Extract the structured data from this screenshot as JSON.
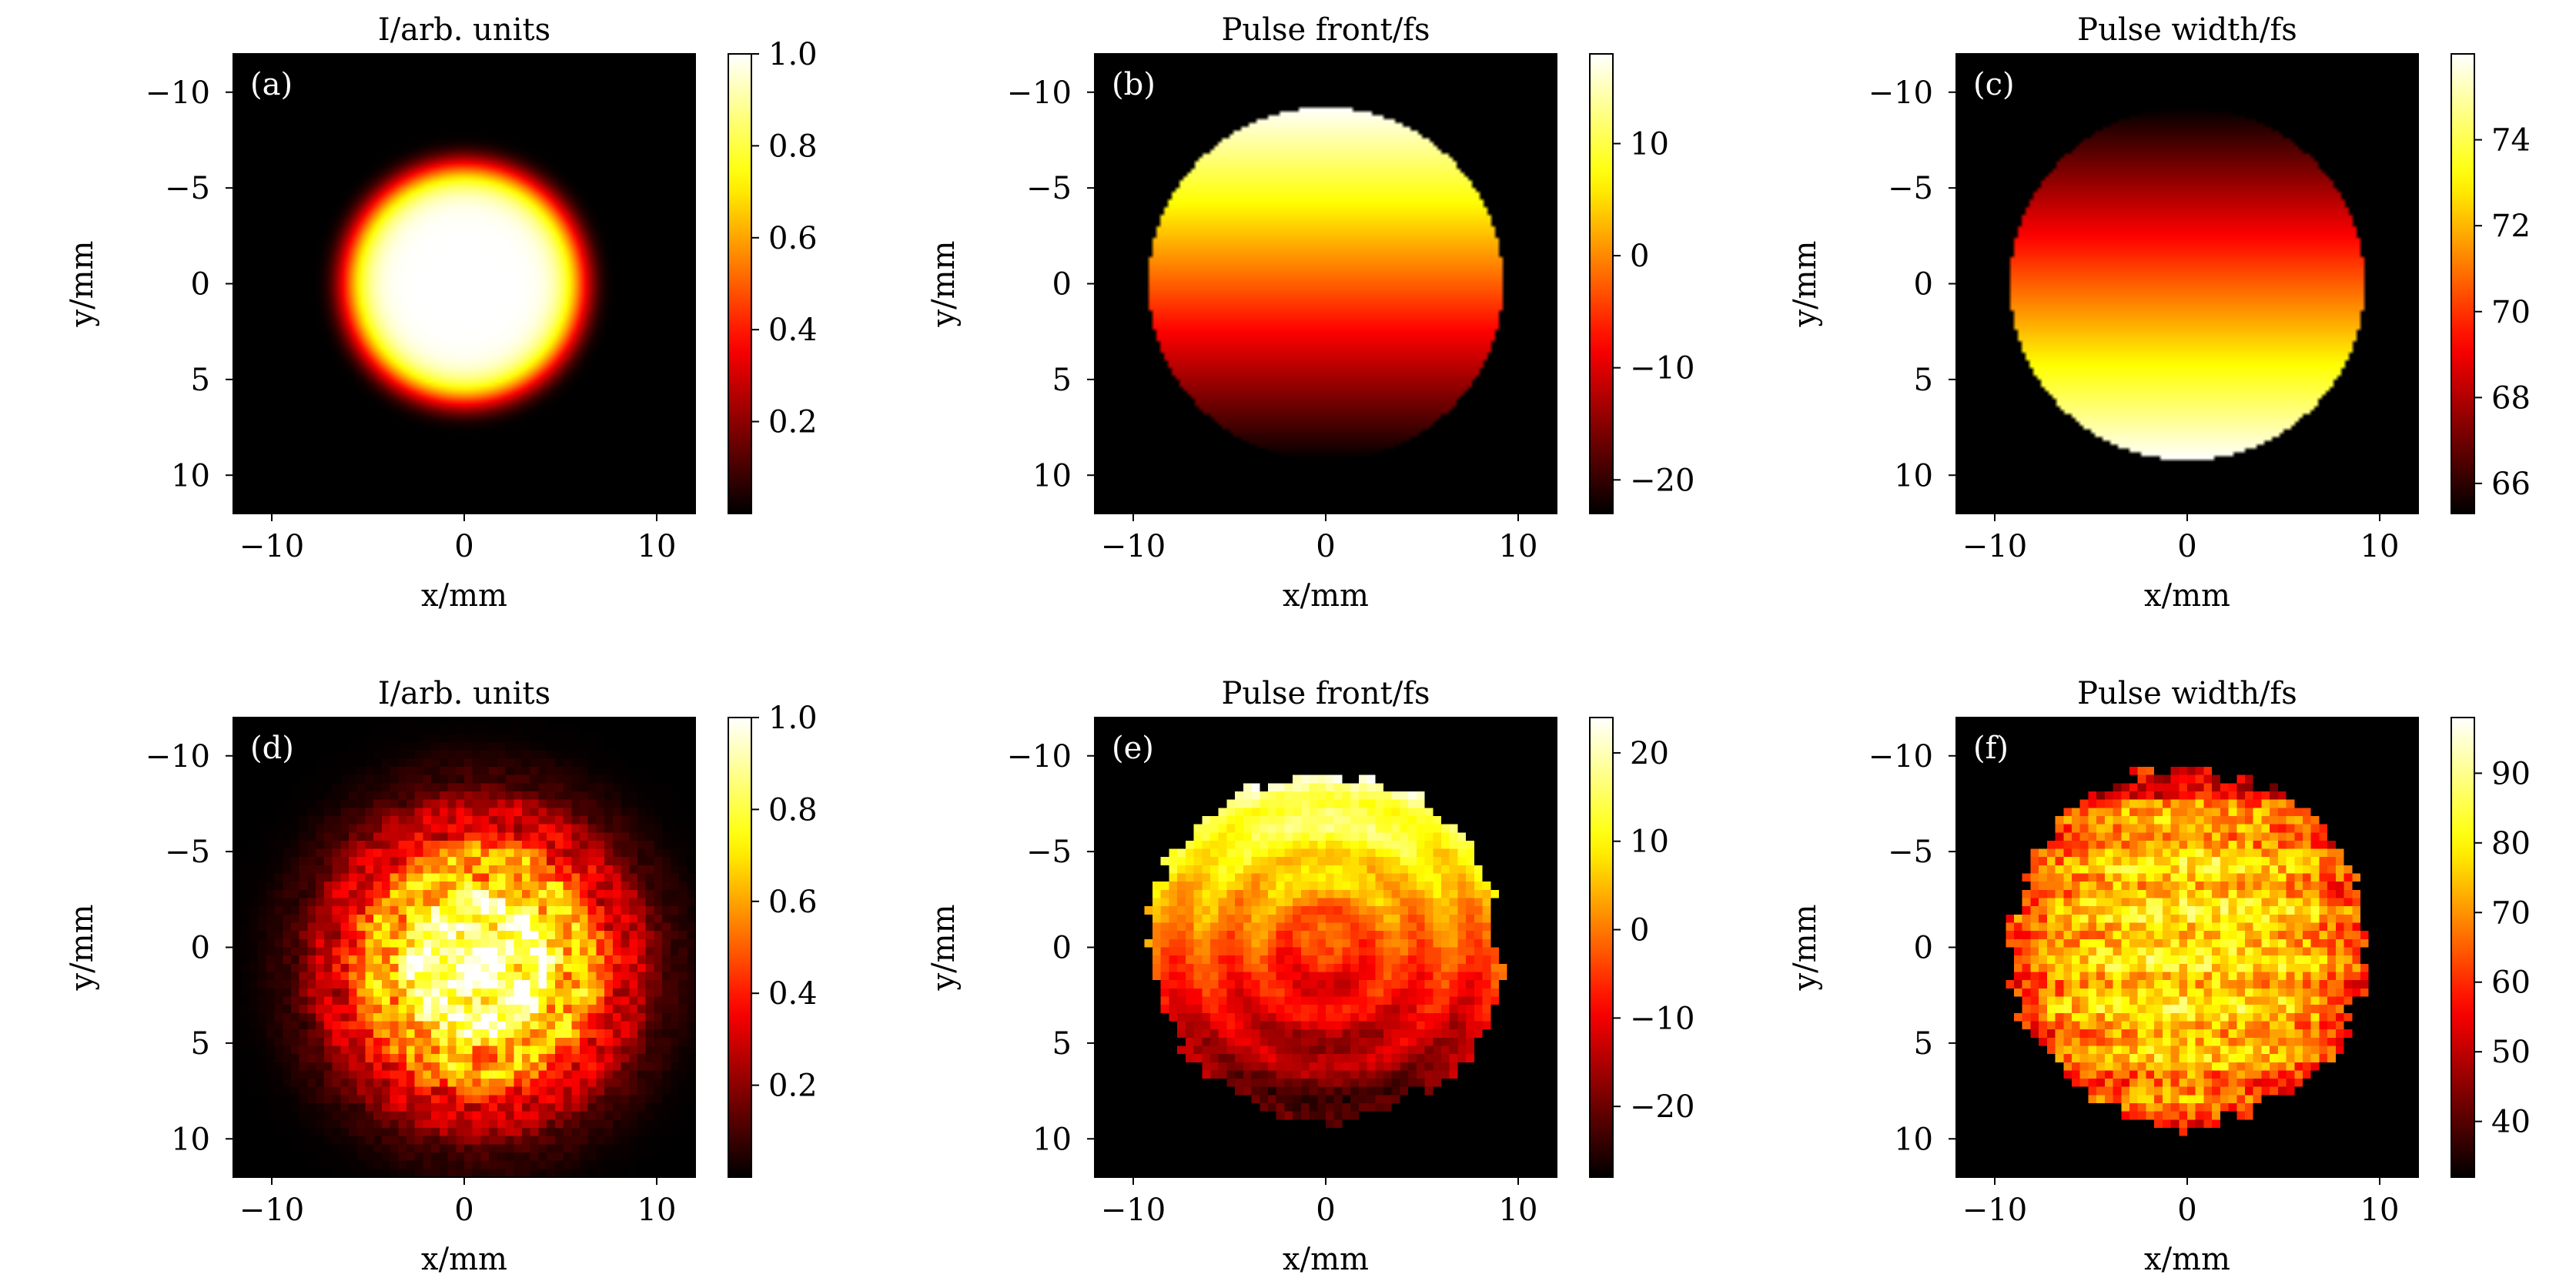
{
  "chart_data": [
    {
      "panel": "(a)",
      "type": "heatmap",
      "title": "I/arb. units",
      "xlabel": "x/mm",
      "ylabel": "y/mm",
      "xlim": [
        -12,
        12
      ],
      "ylim": [
        12,
        -12
      ],
      "xticks": [
        -10,
        0,
        10
      ],
      "xtick_labels": [
        "−10",
        "0",
        "10"
      ],
      "yticks": [
        -10,
        -5,
        0,
        5,
        10
      ],
      "ytick_labels": [
        "−10",
        "−5",
        "0",
        "5",
        "10"
      ],
      "colormap": "hot",
      "colorbar": {
        "min": 0,
        "max": 1.0,
        "ticks": [
          0.2,
          0.4,
          0.6,
          0.8,
          1.0
        ],
        "tick_labels": [
          "0.2",
          "0.4",
          "0.6",
          "0.8",
          "1.0"
        ]
      },
      "field": {
        "kind": "supergaussian",
        "radius_mm": 6.0,
        "order": 4,
        "center": [
          0,
          0
        ],
        "peak": 1.0
      }
    },
    {
      "panel": "(b)",
      "type": "heatmap",
      "title": "Pulse front/fs",
      "xlabel": "x/mm",
      "ylabel": "y/mm",
      "xlim": [
        -12,
        12
      ],
      "ylim": [
        12,
        -12
      ],
      "xticks": [
        -10,
        0,
        10
      ],
      "xtick_labels": [
        "−10",
        "0",
        "10"
      ],
      "yticks": [
        -10,
        -5,
        0,
        5,
        10
      ],
      "ytick_labels": [
        "−10",
        "−5",
        "0",
        "5",
        "10"
      ],
      "colormap": "hot",
      "colorbar": {
        "min": -23,
        "max": 18,
        "ticks": [
          -20,
          -10,
          0,
          10
        ],
        "tick_labels": [
          "−20",
          "−10",
          "0",
          "10"
        ]
      },
      "field": {
        "kind": "vertical_gradient",
        "aperture_radius_mm": 9.2,
        "value_at_top": 18,
        "value_at_bottom": -23
      }
    },
    {
      "panel": "(c)",
      "type": "heatmap",
      "title": "Pulse width/fs",
      "xlabel": "x/mm",
      "ylabel": "y/mm",
      "xlim": [
        -12,
        12
      ],
      "ylim": [
        12,
        -12
      ],
      "xticks": [
        -10,
        0,
        10
      ],
      "xtick_labels": [
        "−10",
        "0",
        "10"
      ],
      "yticks": [
        -10,
        -5,
        0,
        5,
        10
      ],
      "ytick_labels": [
        "−10",
        "−5",
        "0",
        "5",
        "10"
      ],
      "colormap": "hot",
      "colorbar": {
        "min": 65.3,
        "max": 76,
        "ticks": [
          66,
          68,
          70,
          72,
          74
        ],
        "tick_labels": [
          "66",
          "68",
          "70",
          "72",
          "74"
        ]
      },
      "field": {
        "kind": "vertical_gradient",
        "aperture_radius_mm": 9.2,
        "value_at_top": 65.3,
        "value_at_bottom": 76
      }
    },
    {
      "panel": "(d)",
      "type": "heatmap",
      "title": "I/arb. units",
      "xlabel": "x/mm",
      "ylabel": "y/mm",
      "xlim": [
        -12,
        12
      ],
      "ylim": [
        12,
        -12
      ],
      "xticks": [
        -10,
        0,
        10
      ],
      "xtick_labels": [
        "−10",
        "0",
        "10"
      ],
      "yticks": [
        -10,
        -5,
        0,
        5,
        10
      ],
      "ytick_labels": [
        "−10",
        "−5",
        "0",
        "5",
        "10"
      ],
      "colormap": "hot",
      "colorbar": {
        "min": 0,
        "max": 1.0,
        "ticks": [
          0.2,
          0.4,
          0.6,
          0.8,
          1.0
        ],
        "tick_labels": [
          "0.2",
          "0.4",
          "0.6",
          "0.8",
          "1.0"
        ]
      },
      "field": {
        "kind": "measured_intensity",
        "radius_mm": 8.5,
        "center": [
          0.8,
          1.0
        ],
        "peak": 0.95,
        "noise": 0.18
      }
    },
    {
      "panel": "(e)",
      "type": "heatmap",
      "title": "Pulse front/fs",
      "xlabel": "x/mm",
      "ylabel": "y/mm",
      "xlim": [
        -12,
        12
      ],
      "ylim": [
        12,
        -12
      ],
      "xticks": [
        -10,
        0,
        10
      ],
      "xtick_labels": [
        "−10",
        "0",
        "10"
      ],
      "yticks": [
        -10,
        -5,
        0,
        5,
        10
      ],
      "ytick_labels": [
        "−10",
        "−5",
        "0",
        "5",
        "10"
      ],
      "colormap": "hot",
      "colorbar": {
        "min": -28,
        "max": 24,
        "ticks": [
          -20,
          -10,
          0,
          10,
          20
        ],
        "tick_labels": [
          "−20",
          "−10",
          "0",
          "10",
          "20"
        ]
      },
      "field": {
        "kind": "measured_front",
        "aperture_radius_mm": 9.3,
        "value_at_top": 22,
        "value_at_bottom": -26,
        "ring_amplitude": 3.5,
        "noise": 2.5
      }
    },
    {
      "panel": "(f)",
      "type": "heatmap",
      "title": "Pulse width/fs",
      "xlabel": "x/mm",
      "ylabel": "y/mm",
      "xlim": [
        -12,
        12
      ],
      "ylim": [
        12,
        -12
      ],
      "xticks": [
        -10,
        0,
        10
      ],
      "xtick_labels": [
        "−10",
        "0",
        "10"
      ],
      "yticks": [
        -10,
        -5,
        0,
        5,
        10
      ],
      "ytick_labels": [
        "−10",
        "−5",
        "0",
        "5",
        "10"
      ],
      "colormap": "hot",
      "colorbar": {
        "min": 32,
        "max": 98,
        "ticks": [
          40,
          50,
          60,
          70,
          80,
          90
        ],
        "tick_labels": [
          "40",
          "50",
          "60",
          "70",
          "80",
          "90"
        ]
      },
      "field": {
        "kind": "measured_width",
        "aperture_radius_mm": 9.5,
        "mean": 78,
        "edge_value": 60,
        "noise": 9
      }
    }
  ]
}
